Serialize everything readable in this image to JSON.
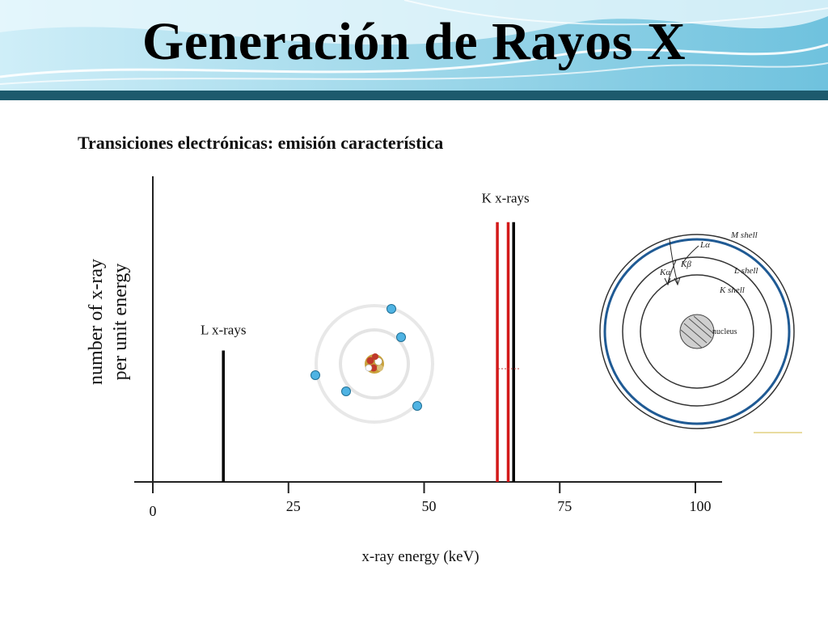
{
  "slide": {
    "title": "Generación de Rayos X",
    "subtitle": "Transiciones electrónicas: emisión característica"
  },
  "colors": {
    "banner_light": "#a9dcec",
    "banner_dark": "#1d5a6d",
    "k_line_red": "#d31919",
    "k_line_black": "#000000",
    "shell_highlight": "#1f5a94",
    "electron": "#4fb3e3"
  },
  "chart_data": {
    "type": "bar",
    "xlabel": "x-ray energy (keV)",
    "ylabel_lines": [
      "number of x-ray",
      "per unit energy"
    ],
    "xlim": [
      0,
      100
    ],
    "x_ticks": [
      0,
      25,
      50,
      75,
      100
    ],
    "x_tick_labels": [
      "0",
      "25",
      "50",
      "75",
      "100"
    ],
    "grid": false,
    "series": [
      {
        "name": "L x-rays",
        "color": "#000000",
        "x": [
          13
        ],
        "y": [
          0.43
        ]
      },
      {
        "name": "K x-rays",
        "color": "#d31919",
        "x": [
          63.5,
          65.5
        ],
        "y": [
          0.85,
          0.85
        ]
      },
      {
        "name": "K x-rays",
        "color": "#000000",
        "x": [
          66.5
        ],
        "y": [
          0.85
        ]
      }
    ],
    "annotations": [
      {
        "text": "L x-rays",
        "x": 13
      },
      {
        "text": "K x-rays",
        "x": 65
      }
    ]
  },
  "shell_diagram": {
    "labels": {
      "m_shell": "M  shell",
      "l_shell": "L  shell",
      "k_shell": "K  shell",
      "nucleus": "nucleus",
      "l_alpha": "Lα",
      "k_beta": "Kβ",
      "k_alpha": "Kα"
    }
  },
  "atom_illustration": {
    "icon": "atom-icon"
  }
}
